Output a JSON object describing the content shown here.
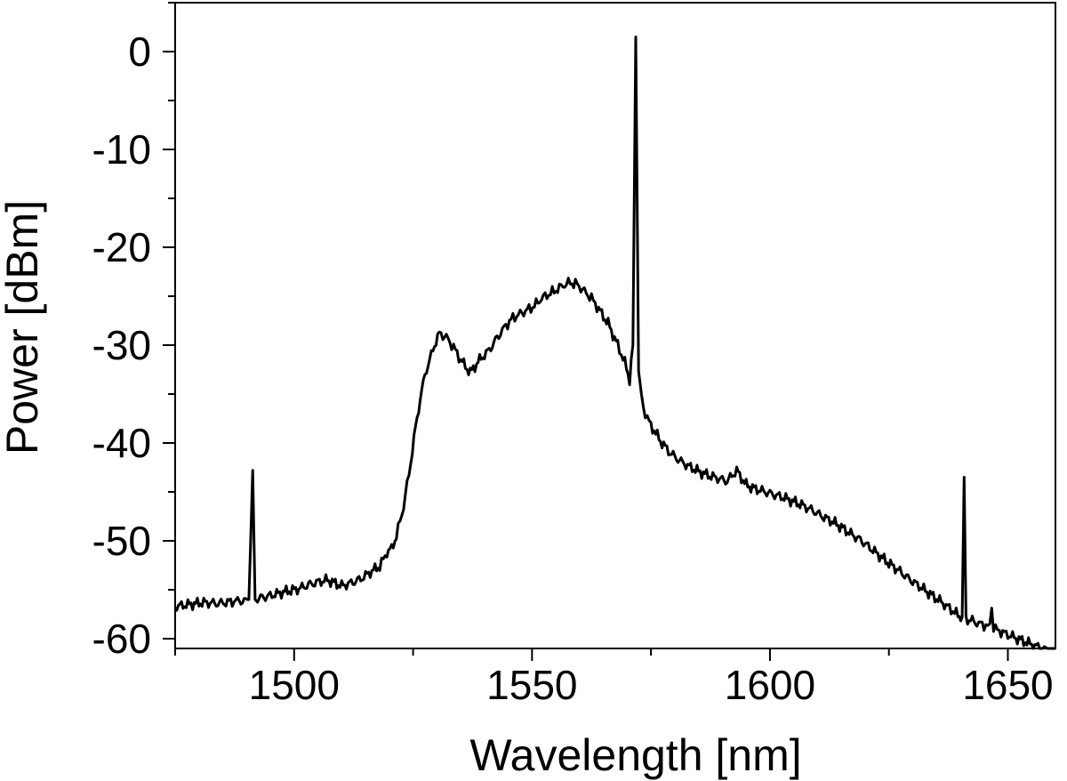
{
  "chart_data": {
    "type": "line",
    "xlabel": "Wavelength [nm]",
    "ylabel": "Power [dBm]",
    "xlim": [
      1475,
      1660
    ],
    "ylim": [
      -61,
      5
    ],
    "x_ticks": [
      1500,
      1550,
      1600,
      1650
    ],
    "x_tick_labels": [
      "1500",
      "1550",
      "1600",
      "1650"
    ],
    "y_ticks": [
      0,
      -10,
      -20,
      -30,
      -40,
      -50,
      -60
    ],
    "y_tick_labels": [
      "0",
      "-10",
      "-20",
      "-30",
      "-40",
      "-50",
      "-60"
    ],
    "grid": false,
    "legend": false,
    "line_color": "#000000",
    "series": [
      {
        "x": [
          1475,
          1478,
          1481,
          1484,
          1487,
          1488.5,
          1489.5,
          1490.5,
          1491.3,
          1491.8,
          1492.3,
          1495,
          1498,
          1501,
          1503,
          1505,
          1507,
          1510,
          1512,
          1514,
          1516,
          1518,
          1519.5,
          1520.5,
          1521.5,
          1523,
          1524.5,
          1525.5,
          1526.5,
          1527.5,
          1528.5,
          1529.5,
          1530.5,
          1532,
          1533.5,
          1535,
          1537,
          1539,
          1541,
          1543,
          1544.5,
          1546,
          1547.5,
          1549,
          1550.5,
          1552,
          1553.5,
          1555,
          1556.5,
          1558,
          1559.5,
          1561,
          1562.5,
          1564,
          1566,
          1568,
          1569.5,
          1570.5,
          1571.2,
          1571.8,
          1572.4,
          1573,
          1573.8,
          1575,
          1577,
          1579,
          1581,
          1583,
          1585,
          1587,
          1589,
          1591,
          1593,
          1595,
          1597,
          1599,
          1601,
          1603,
          1605,
          1607,
          1609,
          1611,
          1613,
          1615,
          1617,
          1619,
          1621,
          1623,
          1625,
          1627,
          1629,
          1631,
          1633,
          1635,
          1637,
          1638.8,
          1639.5,
          1640.4,
          1640.8,
          1641.2,
          1642.2,
          1643.5,
          1645,
          1646.2,
          1646.6,
          1647,
          1648.2,
          1650,
          1652,
          1654,
          1656,
          1658,
          1660
        ],
        "y": [
          -56.7,
          -56.5,
          -56.3,
          -56.4,
          -56.2,
          -56.1,
          -56.2,
          -56.0,
          -42.8,
          -55.8,
          -55.9,
          -55.6,
          -55.2,
          -54.9,
          -54.5,
          -54.2,
          -54.0,
          -54.6,
          -54.3,
          -53.9,
          -53.2,
          -52.6,
          -51.2,
          -50.8,
          -49.5,
          -46.5,
          -42.0,
          -38.5,
          -35.5,
          -33.0,
          -31.5,
          -30.0,
          -28.8,
          -29.2,
          -30.2,
          -31.5,
          -32.8,
          -31.5,
          -30.5,
          -29.0,
          -28.0,
          -27.2,
          -26.8,
          -26.4,
          -26.0,
          -25.2,
          -24.8,
          -24.4,
          -23.9,
          -23.6,
          -23.8,
          -24.5,
          -25.2,
          -26.3,
          -27.8,
          -30.0,
          -31.8,
          -33.5,
          -30.0,
          1.5,
          -32.5,
          -35.5,
          -37.0,
          -38.2,
          -39.8,
          -41.0,
          -41.8,
          -42.4,
          -42.9,
          -43.3,
          -43.6,
          -43.9,
          -42.8,
          -44.3,
          -44.7,
          -45.0,
          -45.3,
          -45.6,
          -46.0,
          -46.4,
          -46.9,
          -47.5,
          -48.0,
          -48.6,
          -49.3,
          -49.9,
          -50.7,
          -51.5,
          -52.3,
          -53.0,
          -53.8,
          -54.5,
          -55.2,
          -55.9,
          -56.6,
          -57.3,
          -57.6,
          -57.8,
          -43.5,
          -58.0,
          -58.1,
          -58.4,
          -58.6,
          -58.8,
          -56.6,
          -58.9,
          -59.2,
          -59.6,
          -60.0,
          -60.4,
          -60.8,
          -61.2,
          -61.6
        ]
      }
    ]
  }
}
